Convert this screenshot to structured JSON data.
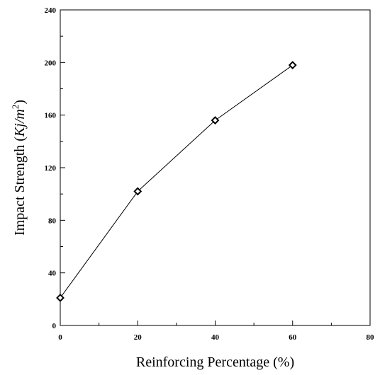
{
  "chart_data": {
    "type": "line",
    "xlabel": "Reinforcing Percentage (%)",
    "ylabel": {
      "prefix": "Impact Strength (",
      "unit_main": "Kj/m",
      "unit_sup": "2",
      "suffix": ")"
    },
    "xlim": [
      0,
      80
    ],
    "ylim": [
      0,
      240
    ],
    "xticks": [
      0,
      20,
      40,
      60,
      80
    ],
    "yticks": [
      0,
      40,
      80,
      120,
      160,
      200,
      240
    ],
    "x_minor_step": 10,
    "y_minor_step": 20,
    "grid": false,
    "marker": "diamond",
    "color": "#000000",
    "series": [
      {
        "x": [
          0,
          20,
          40,
          60
        ],
        "y": [
          21,
          102,
          156,
          198
        ]
      }
    ]
  }
}
